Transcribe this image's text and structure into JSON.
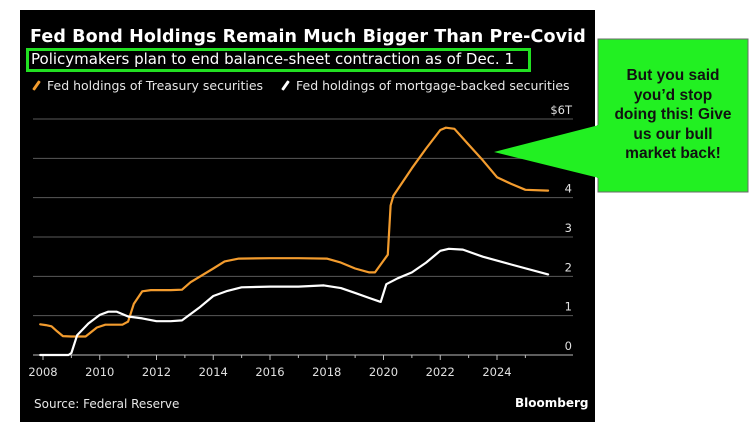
{
  "chart_data": {
    "type": "line",
    "title": "Fed Bond Holdings Remain Much Bigger Than Pre-Covid",
    "subtitle": "Policymakers plan to end balance-sheet contraction as of Dec. 1",
    "xlabel": "",
    "ylabel": "",
    "xlim": [
      2007.8,
      2026.0
    ],
    "ylim": [
      0,
      6
    ],
    "x_ticks": [
      2008,
      2010,
      2012,
      2014,
      2016,
      2018,
      2020,
      2022,
      2024
    ],
    "x_minor_ticks": [
      2009,
      2011,
      2013,
      2015,
      2017,
      2019,
      2021,
      2023,
      2025
    ],
    "y_ticks": [
      {
        "value": 0,
        "label": "0"
      },
      {
        "value": 1,
        "label": "1"
      },
      {
        "value": 2,
        "label": "2"
      },
      {
        "value": 3,
        "label": "3"
      },
      {
        "value": 4,
        "label": "4"
      },
      {
        "value": 6,
        "label": "$6T"
      }
    ],
    "y_gridlines": [
      1,
      2,
      3,
      4,
      5,
      6
    ],
    "grid": true,
    "legend_position": "top-left",
    "series": [
      {
        "name": "Fed holdings of Treasury securities",
        "color": "#f39c2e",
        "x": [
          2007.9,
          2008.1,
          2008.3,
          2008.5,
          2008.7,
          2009.0,
          2009.5,
          2009.9,
          2010.2,
          2010.8,
          2011.0,
          2011.2,
          2011.5,
          2011.8,
          2012.5,
          2012.9,
          2013.2,
          2014.0,
          2014.4,
          2014.9,
          2016.0,
          2017.0,
          2018.0,
          2018.5,
          2019.0,
          2019.5,
          2019.7,
          2019.9,
          2020.15,
          2020.25,
          2020.35,
          2021.0,
          2021.5,
          2022.0,
          2022.2,
          2022.5,
          2023.0,
          2023.5,
          2024.0,
          2024.5,
          2025.0,
          2025.8
        ],
        "values": [
          0.78,
          0.76,
          0.73,
          0.6,
          0.48,
          0.47,
          0.47,
          0.7,
          0.77,
          0.77,
          0.85,
          1.3,
          1.62,
          1.65,
          1.65,
          1.66,
          1.85,
          2.2,
          2.38,
          2.45,
          2.46,
          2.46,
          2.45,
          2.35,
          2.2,
          2.1,
          2.1,
          2.3,
          2.55,
          3.8,
          4.05,
          4.75,
          5.25,
          5.72,
          5.78,
          5.75,
          5.35,
          4.95,
          4.52,
          4.35,
          4.2,
          4.18
        ]
      },
      {
        "name": "Fed holdings of mortgage-backed securities",
        "color": "#ffffff",
        "x": [
          2007.9,
          2008.9,
          2009.0,
          2009.2,
          2009.6,
          2010.0,
          2010.3,
          2010.6,
          2011.0,
          2011.5,
          2012.0,
          2012.5,
          2012.9,
          2013.5,
          2014.0,
          2014.5,
          2015.0,
          2016.0,
          2017.0,
          2017.9,
          2018.5,
          2019.0,
          2019.5,
          2019.9,
          2020.1,
          2020.5,
          2021.0,
          2021.5,
          2022.0,
          2022.3,
          2022.8,
          2023.5,
          2024.5,
          2025.8
        ],
        "values": [
          0,
          0,
          0.05,
          0.5,
          0.8,
          1.02,
          1.1,
          1.1,
          0.98,
          0.93,
          0.86,
          0.86,
          0.88,
          1.2,
          1.5,
          1.63,
          1.72,
          1.74,
          1.74,
          1.77,
          1.7,
          1.58,
          1.45,
          1.35,
          1.8,
          1.95,
          2.1,
          2.35,
          2.65,
          2.7,
          2.68,
          2.5,
          2.3,
          2.05
        ]
      }
    ]
  },
  "footer": {
    "source": "Source: Federal Reserve",
    "brand": "Bloomberg"
  },
  "annotation": {
    "text_lines": [
      "But you said",
      "you’d stop",
      "doing this! Give",
      "us our bull",
      "market back!"
    ],
    "fill_color": "#22f022",
    "highlight_color": "#22e022"
  }
}
